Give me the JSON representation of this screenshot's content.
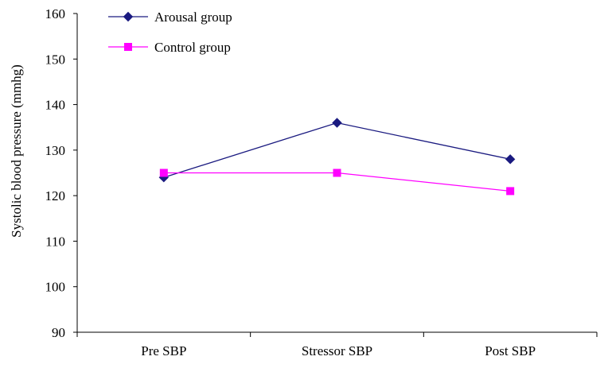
{
  "chart_data": {
    "type": "line",
    "categories": [
      "Pre SBP",
      "Stressor SBP",
      "Post SBP"
    ],
    "series": [
      {
        "name": "Arousal group",
        "values": [
          124,
          136,
          128
        ],
        "color": "#1a1a80",
        "marker": "diamond"
      },
      {
        "name": "Control group",
        "values": [
          125,
          125,
          121
        ],
        "color": "#ff00ff",
        "marker": "square"
      }
    ],
    "title": "",
    "xlabel": "",
    "ylabel": "Systolic blood pressure (mmhg)",
    "ylim": [
      90,
      160
    ],
    "yticks": [
      90,
      100,
      110,
      120,
      130,
      140,
      150,
      160
    ],
    "grid": false,
    "legend_position": "top-left"
  }
}
